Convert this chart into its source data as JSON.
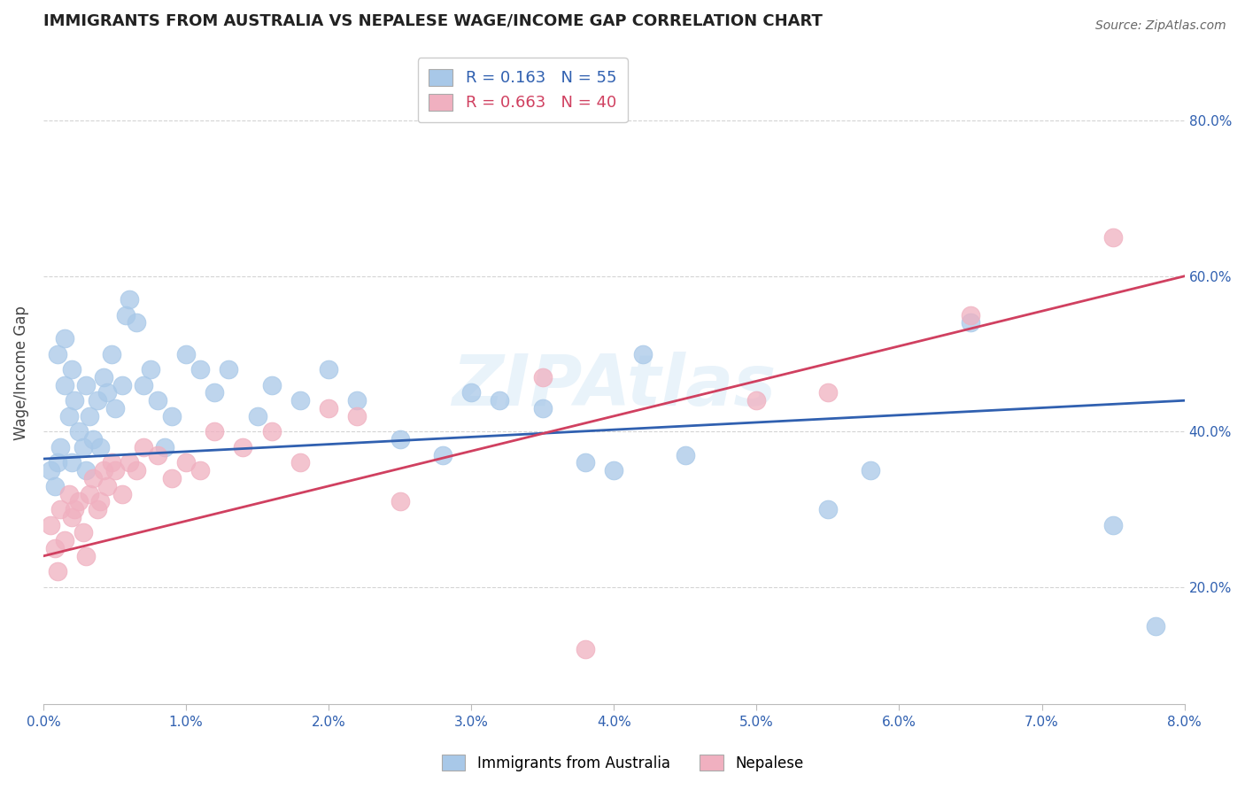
{
  "title": "IMMIGRANTS FROM AUSTRALIA VS NEPALESE WAGE/INCOME GAP CORRELATION CHART",
  "source": "Source: ZipAtlas.com",
  "ylabel": "Wage/Income Gap",
  "x_tick_labels": [
    "0.0%",
    "1.0%",
    "2.0%",
    "3.0%",
    "4.0%",
    "5.0%",
    "6.0%",
    "7.0%",
    "8.0%"
  ],
  "x_tick_values": [
    0,
    1,
    2,
    3,
    4,
    5,
    6,
    7,
    8
  ],
  "y_tick_labels": [
    "20.0%",
    "40.0%",
    "60.0%",
    "80.0%"
  ],
  "y_tick_values": [
    20,
    40,
    60,
    80
  ],
  "xlim": [
    0.0,
    8.0
  ],
  "ylim": [
    5.0,
    90.0
  ],
  "blue_color": "#a8c8e8",
  "blue_line_color": "#3060b0",
  "pink_color": "#f0b0c0",
  "pink_line_color": "#d04060",
  "blue_R": 0.163,
  "blue_N": 55,
  "pink_R": 0.663,
  "pink_N": 40,
  "legend_blue_label": "Immigrants from Australia",
  "legend_pink_label": "Nepalese",
  "watermark": "ZIPAtlas",
  "blue_line_x0": 0.0,
  "blue_line_y0": 36.5,
  "blue_line_x1": 8.0,
  "blue_line_y1": 44.0,
  "pink_line_x0": 0.0,
  "pink_line_y0": 24.0,
  "pink_line_x1": 8.0,
  "pink_line_y1": 60.0,
  "blue_scatter_x": [
    0.05,
    0.08,
    0.1,
    0.1,
    0.12,
    0.15,
    0.15,
    0.18,
    0.2,
    0.2,
    0.22,
    0.25,
    0.28,
    0.3,
    0.3,
    0.32,
    0.35,
    0.38,
    0.4,
    0.42,
    0.45,
    0.48,
    0.5,
    0.55,
    0.58,
    0.6,
    0.65,
    0.7,
    0.75,
    0.8,
    0.85,
    0.9,
    1.0,
    1.1,
    1.2,
    1.3,
    1.5,
    1.6,
    1.8,
    2.0,
    2.2,
    2.5,
    2.8,
    3.0,
    3.2,
    3.5,
    3.8,
    4.0,
    4.2,
    4.5,
    5.5,
    5.8,
    6.5,
    7.5,
    7.8
  ],
  "blue_scatter_y": [
    35,
    33,
    36,
    50,
    38,
    46,
    52,
    42,
    48,
    36,
    44,
    40,
    38,
    46,
    35,
    42,
    39,
    44,
    38,
    47,
    45,
    50,
    43,
    46,
    55,
    57,
    54,
    46,
    48,
    44,
    38,
    42,
    50,
    48,
    45,
    48,
    42,
    46,
    44,
    48,
    44,
    39,
    37,
    45,
    44,
    43,
    36,
    35,
    50,
    37,
    30,
    35,
    54,
    28,
    15
  ],
  "pink_scatter_x": [
    0.05,
    0.08,
    0.1,
    0.12,
    0.15,
    0.18,
    0.2,
    0.22,
    0.25,
    0.28,
    0.3,
    0.32,
    0.35,
    0.38,
    0.4,
    0.42,
    0.45,
    0.48,
    0.5,
    0.55,
    0.6,
    0.65,
    0.7,
    0.8,
    0.9,
    1.0,
    1.1,
    1.2,
    1.4,
    1.6,
    1.8,
    2.0,
    2.2,
    2.5,
    3.5,
    3.8,
    5.0,
    5.5,
    6.5,
    7.5
  ],
  "pink_scatter_y": [
    28,
    25,
    22,
    30,
    26,
    32,
    29,
    30,
    31,
    27,
    24,
    32,
    34,
    30,
    31,
    35,
    33,
    36,
    35,
    32,
    36,
    35,
    38,
    37,
    34,
    36,
    35,
    40,
    38,
    40,
    36,
    43,
    42,
    31,
    47,
    12,
    44,
    45,
    55,
    65
  ],
  "background_color": "#ffffff",
  "grid_color": "#d0d0d0",
  "title_fontsize": 13,
  "axis_label_color": "#3060b0",
  "axis_tick_color": "#3060b0"
}
